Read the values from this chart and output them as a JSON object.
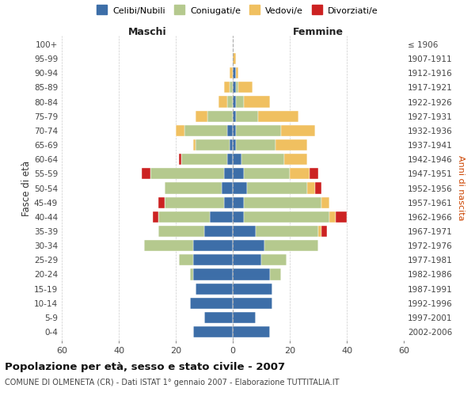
{
  "age_groups": [
    "0-4",
    "5-9",
    "10-14",
    "15-19",
    "20-24",
    "25-29",
    "30-34",
    "35-39",
    "40-44",
    "45-49",
    "50-54",
    "55-59",
    "60-64",
    "65-69",
    "70-74",
    "75-79",
    "80-84",
    "85-89",
    "90-94",
    "95-99",
    "100+"
  ],
  "birth_years": [
    "2002-2006",
    "1997-2001",
    "1992-1996",
    "1987-1991",
    "1982-1986",
    "1977-1981",
    "1972-1976",
    "1967-1971",
    "1962-1966",
    "1957-1961",
    "1952-1956",
    "1947-1951",
    "1942-1946",
    "1937-1941",
    "1932-1936",
    "1927-1931",
    "1922-1926",
    "1917-1921",
    "1912-1916",
    "1907-1911",
    "≤ 1906"
  ],
  "male_celibi": [
    14,
    10,
    15,
    13,
    14,
    14,
    14,
    10,
    8,
    3,
    4,
    3,
    2,
    1,
    2,
    0,
    0,
    0,
    0,
    0,
    0
  ],
  "male_coniugati": [
    0,
    0,
    0,
    0,
    1,
    5,
    17,
    16,
    18,
    21,
    20,
    26,
    16,
    12,
    15,
    9,
    2,
    1,
    0,
    0,
    0
  ],
  "male_vedovi": [
    0,
    0,
    0,
    0,
    0,
    0,
    0,
    0,
    0,
    0,
    0,
    0,
    0,
    1,
    3,
    4,
    3,
    2,
    1,
    0,
    0
  ],
  "male_divorziati": [
    0,
    0,
    0,
    0,
    0,
    0,
    0,
    0,
    2,
    2,
    0,
    3,
    1,
    0,
    0,
    0,
    0,
    0,
    0,
    0,
    0
  ],
  "female_celibi": [
    13,
    8,
    14,
    14,
    13,
    10,
    11,
    8,
    4,
    4,
    5,
    4,
    3,
    1,
    1,
    1,
    1,
    1,
    1,
    0,
    0
  ],
  "female_coniugati": [
    0,
    0,
    0,
    0,
    4,
    9,
    19,
    22,
    30,
    27,
    21,
    16,
    15,
    14,
    16,
    8,
    3,
    1,
    0,
    0,
    0
  ],
  "female_vedovi": [
    0,
    0,
    0,
    0,
    0,
    0,
    0,
    1,
    2,
    3,
    3,
    7,
    8,
    11,
    12,
    14,
    9,
    5,
    1,
    1,
    0
  ],
  "female_divorziati": [
    0,
    0,
    0,
    0,
    0,
    0,
    0,
    2,
    4,
    0,
    2,
    3,
    0,
    0,
    0,
    0,
    0,
    0,
    0,
    0,
    0
  ],
  "color_celibi": "#3d6ea8",
  "color_coniugati": "#b5c98e",
  "color_vedovi": "#f0c060",
  "color_divorziati": "#cc2222",
  "title": "Popolazione per età, sesso e stato civile - 2007",
  "subtitle": "COMUNE DI OLMENETA (CR) - Dati ISTAT 1° gennaio 2007 - Elaborazione TUTTITALIA.IT",
  "xlabel_left": "Maschi",
  "xlabel_right": "Femmine",
  "ylabel_left": "Fasce di età",
  "ylabel_right": "Anni di nascita",
  "legend_labels": [
    "Celibi/Nubili",
    "Coniugati/e",
    "Vedovi/e",
    "Divorziati/e"
  ],
  "xlim": 60,
  "background_color": "#ffffff",
  "grid_color": "#cccccc"
}
